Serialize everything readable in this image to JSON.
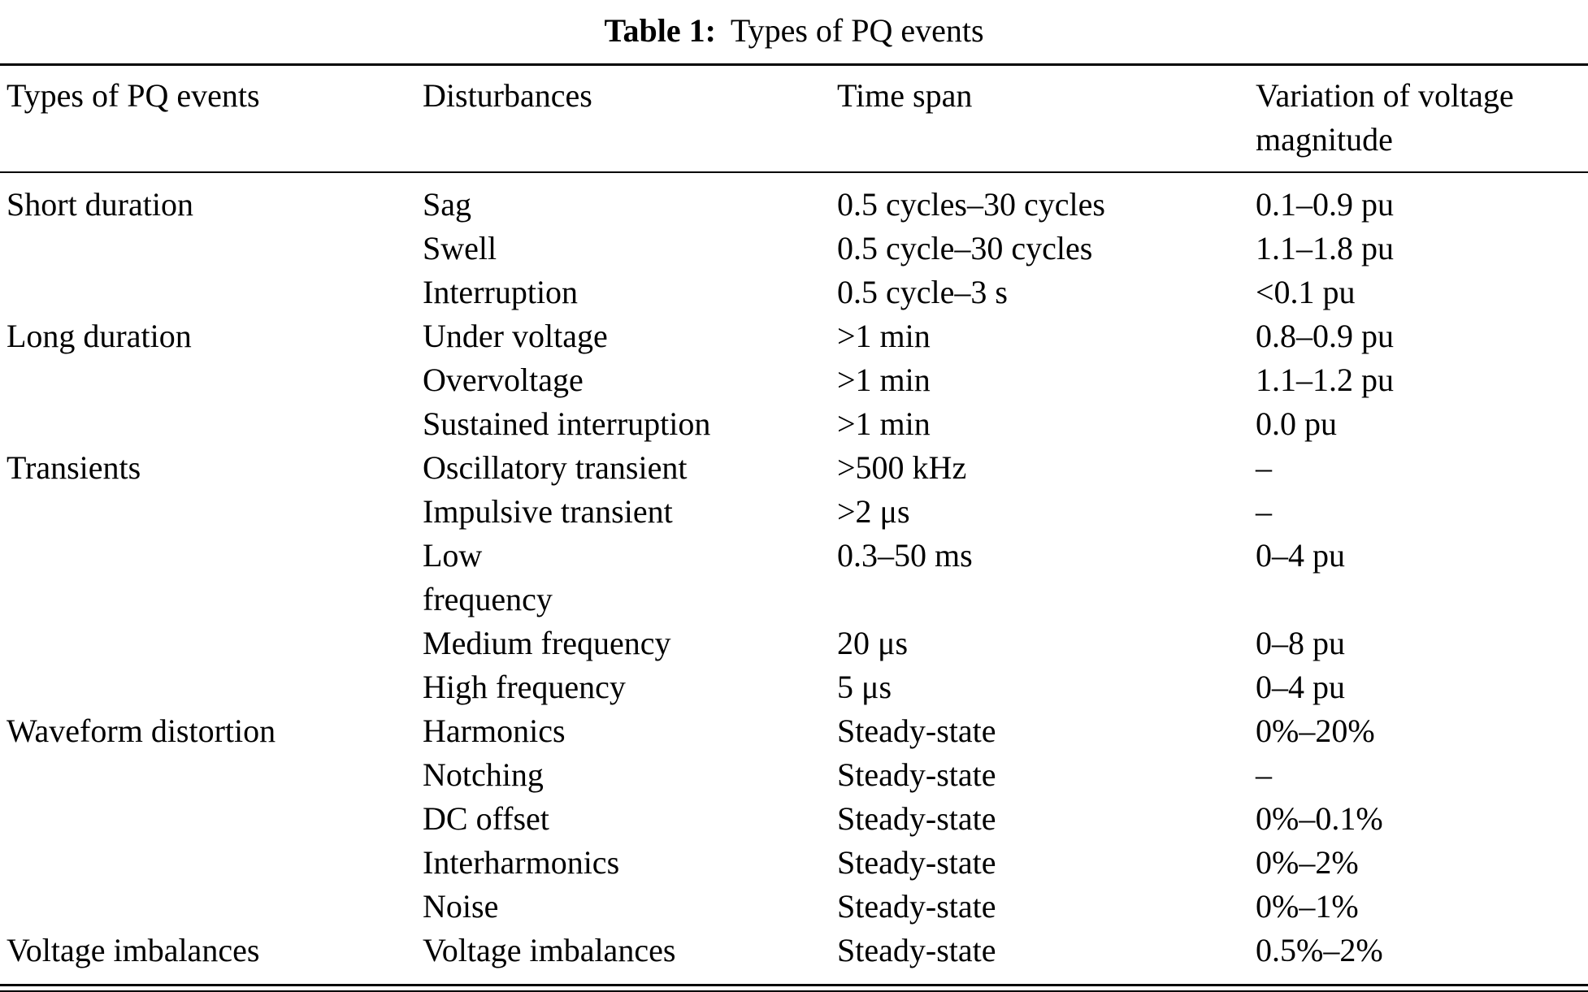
{
  "caption": {
    "label": "Table 1:",
    "text": "Types of PQ events"
  },
  "columns": [
    "Types of PQ events",
    "Disturbances",
    "Time span",
    "Variation of voltage magnitude"
  ],
  "rows": [
    {
      "type": "Short duration",
      "disturbance": "Sag",
      "time": "0.5 cycles–30 cycles",
      "magnitude": "0.1–0.9 pu"
    },
    {
      "type": "",
      "disturbance": "Swell",
      "time": "0.5 cycle–30 cycles",
      "magnitude": "1.1–1.8 pu"
    },
    {
      "type": "",
      "disturbance": "Interruption",
      "time": "0.5 cycle–3 s",
      "magnitude": "<0.1 pu"
    },
    {
      "type": "Long duration",
      "disturbance": "Under voltage",
      "time": ">1 min",
      "magnitude": "0.8–0.9 pu"
    },
    {
      "type": "",
      "disturbance": "Overvoltage",
      "time": ">1 min",
      "magnitude": "1.1–1.2 pu"
    },
    {
      "type": "",
      "disturbance": "Sustained interruption",
      "time": ">1 min",
      "magnitude": "0.0 pu"
    },
    {
      "type": "Transients",
      "disturbance": "Oscillatory transient",
      "time": ">500 kHz",
      "magnitude": "–"
    },
    {
      "type": "",
      "disturbance": "Impulsive transient",
      "time": ">2 μs",
      "magnitude": "–"
    },
    {
      "type": "",
      "disturbance": "Low\nfrequency",
      "time": "0.3–50 ms",
      "magnitude": "0–4 pu"
    },
    {
      "type": "",
      "disturbance": "Medium frequency",
      "time": "20 μs",
      "magnitude": "0–8 pu"
    },
    {
      "type": "",
      "disturbance": "High frequency",
      "time": "5 μs",
      "magnitude": "0–4 pu"
    },
    {
      "type": "Waveform distortion",
      "disturbance": "Harmonics",
      "time": "Steady-state",
      "magnitude": "0%–20%"
    },
    {
      "type": "",
      "disturbance": "Notching",
      "time": "Steady-state",
      "magnitude": "–"
    },
    {
      "type": "",
      "disturbance": "DC offset",
      "time": "Steady-state",
      "magnitude": "0%–0.1%"
    },
    {
      "type": "",
      "disturbance": "Interharmonics",
      "time": "Steady-state",
      "magnitude": "0%–2%"
    },
    {
      "type": "",
      "disturbance": "Noise",
      "time": "Steady-state",
      "magnitude": "0%–1%"
    },
    {
      "type": "Voltage imbalances",
      "disturbance": "Voltage imbalances",
      "time": "Steady-state",
      "magnitude": "0.5%–2%"
    }
  ]
}
